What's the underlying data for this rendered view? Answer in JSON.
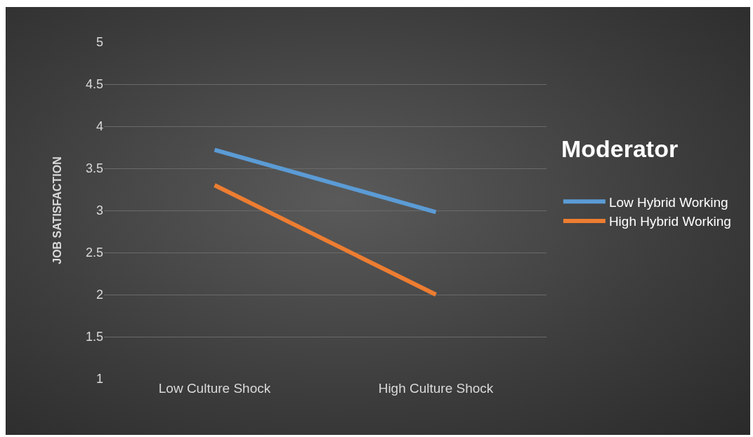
{
  "chart_data": {
    "type": "line",
    "ylabel": "JOB SATISFACTION",
    "legend_title": "Moderator",
    "categories": [
      "Low Culture Shock",
      "High Culture Shock"
    ],
    "series": [
      {
        "name": "Low Hybrid Working",
        "color": "#5b9bd5",
        "values": [
          3.72,
          2.98
        ]
      },
      {
        "name": "High Hybrid Working",
        "color": "#ed7d31",
        "values": [
          3.3,
          2.0
        ]
      }
    ],
    "ylim": [
      1,
      5
    ],
    "yticks": [
      1,
      1.5,
      2,
      2.5,
      3,
      3.5,
      4,
      4.5,
      5
    ],
    "grid": "y",
    "legend": "right",
    "marker": "none",
    "line_style": "solid"
  }
}
